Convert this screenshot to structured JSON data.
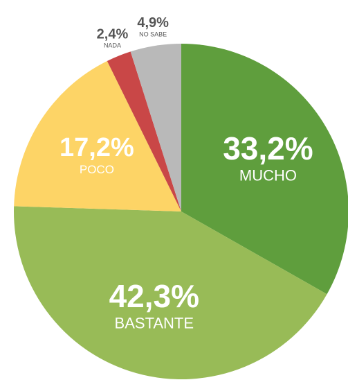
{
  "chart_data": {
    "type": "pie",
    "categories": [
      "MUCHO",
      "BASTANTE",
      "POCO",
      "NADA",
      "NO SABE"
    ],
    "values": [
      33.2,
      42.3,
      17.2,
      2.4,
      4.9
    ],
    "value_labels": [
      "33,2%",
      "42,3%",
      "17,2%",
      "2,4%",
      "4,9%"
    ],
    "colors": [
      "#5f9e3d",
      "#98bb57",
      "#fdd466",
      "#c94747",
      "#b9b9b9"
    ]
  }
}
